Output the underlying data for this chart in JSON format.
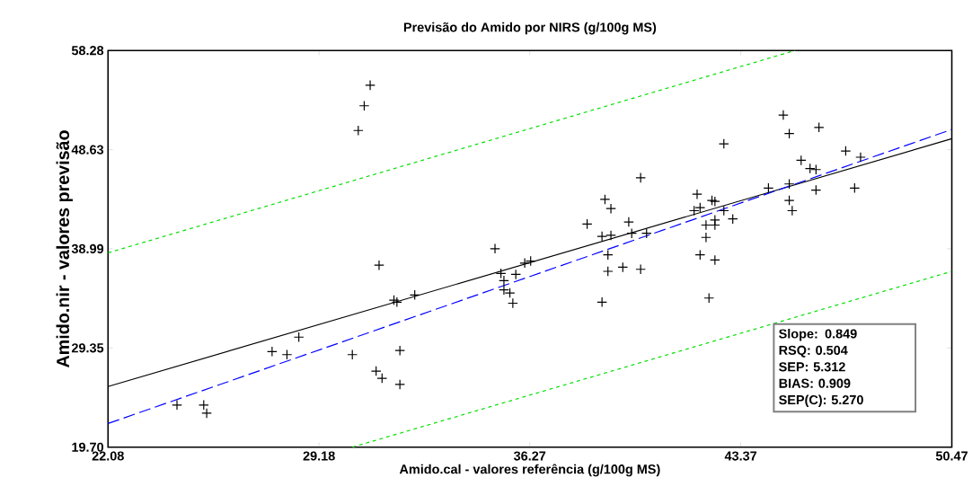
{
  "chart_data": {
    "type": "scatter",
    "title": "Previsão do Amido por NIRS (g/100g MS)",
    "xlabel": "Amido.cal - valores referência (g/100g MS)",
    "ylabel": "Amido.nir - valores previsão",
    "xlim": [
      22.08,
      50.47
    ],
    "ylim": [
      19.7,
      58.28
    ],
    "xticks": [
      22.08,
      29.18,
      36.27,
      43.37,
      50.47
    ],
    "yticks": [
      {
        "value": 19.7,
        "label": "19.70"
      },
      29.35,
      38.99,
      48.63,
      58.28
    ],
    "grid": false,
    "series": [
      {
        "color": "#000000",
        "marker": "cross",
        "x": [
          24.4,
          25.3,
          25.4,
          27.6,
          28.1,
          28.5,
          30.3,
          30.5,
          30.7,
          30.9,
          31.2,
          31.1,
          31.3,
          31.7,
          31.8,
          31.9,
          31.9,
          32.4,
          35.1,
          35.3,
          35.4,
          35.4,
          35.6,
          35.7,
          35.8,
          36.1,
          36.3,
          38.2,
          38.8,
          39.0,
          39.6,
          38.7,
          39.0,
          39.7,
          40.2,
          38.9,
          39.4,
          40.0,
          38.9,
          38.7,
          40.0,
          42.8,
          41.9,
          42.4,
          42.5,
          42.0,
          41.8,
          42.8,
          43.1,
          42.5,
          42.2,
          42.5,
          42.2,
          42.0,
          42.5,
          42.3,
          44.3,
          44.8,
          45.0,
          46.0,
          45.0,
          45.0,
          45.1,
          45.4,
          45.7,
          45.9,
          45.9,
          46.9,
          47.4,
          47.2
        ],
        "values": [
          23.8,
          23.8,
          23.0,
          29.0,
          28.7,
          30.4,
          28.7,
          50.5,
          52.9,
          54.9,
          37.4,
          27.1,
          26.4,
          34.0,
          33.8,
          25.8,
          29.1,
          34.5,
          39.0,
          36.6,
          35.9,
          35.0,
          34.7,
          33.7,
          36.5,
          37.6,
          37.8,
          41.4,
          43.8,
          42.9,
          41.6,
          40.2,
          40.3,
          40.5,
          40.5,
          38.4,
          37.2,
          37.0,
          36.8,
          33.8,
          45.9,
          49.2,
          44.3,
          43.7,
          43.6,
          43.0,
          42.7,
          42.7,
          41.9,
          41.8,
          41.3,
          41.3,
          40.1,
          38.4,
          37.9,
          34.2,
          44.9,
          52.0,
          50.2,
          50.8,
          45.3,
          43.7,
          42.7,
          47.6,
          46.8,
          46.7,
          44.7,
          48.5,
          47.9,
          44.9
        ]
      },
      {
        "type": "line",
        "color": "#000000",
        "line_style": "solid",
        "x": [
          22.08,
          50.47
        ],
        "values": [
          25.6,
          49.7
        ]
      },
      {
        "type": "line",
        "color": "#0000ff",
        "line_style": "dashed",
        "x": [
          22.08,
          50.47
        ],
        "values": [
          22.0,
          50.6
        ]
      },
      {
        "type": "line",
        "color": "#00e000",
        "line_style": "dotted",
        "x": [
          22.08,
          45.2
        ],
        "values": [
          38.6,
          58.28
        ]
      },
      {
        "type": "line",
        "color": "#00e000",
        "line_style": "dotted",
        "x": [
          30.3,
          50.47
        ],
        "values": [
          19.7,
          36.8
        ]
      }
    ],
    "annotations": [
      "Slope: 0.849",
      "RSQ: 0.504",
      "SEP: 5.312",
      "BIAS: 0.909",
      "SEP(C): 5.270"
    ]
  }
}
